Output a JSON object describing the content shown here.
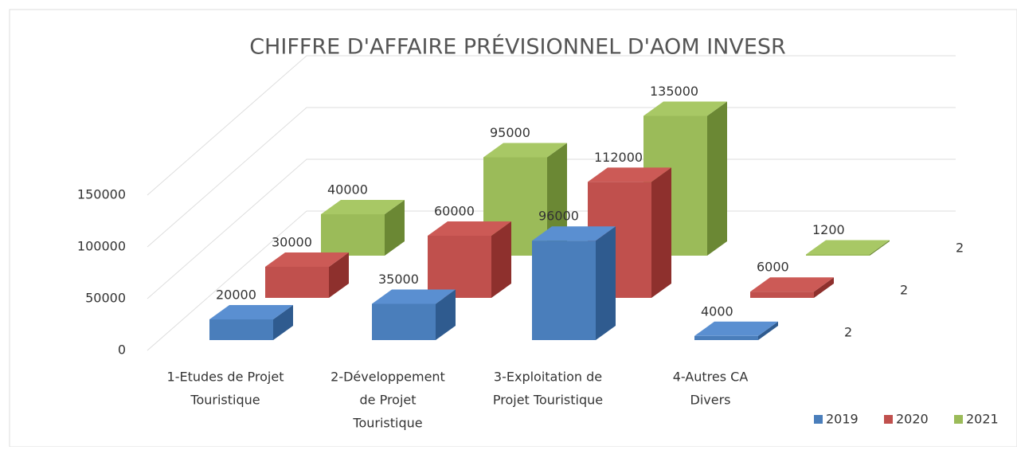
{
  "chart_data": {
    "type": "bar3d",
    "title": "CHIFFRE D'AFFAIRE PRÉVISIONNEL D'AOM INVESR",
    "categories": [
      [
        "1-Etudes de Projet",
        "Touristique"
      ],
      [
        "2-Développement",
        "de Projet",
        "Touristique"
      ],
      [
        "3-Exploitation de",
        "Projet Touristique"
      ],
      [
        "4-Autres CA",
        "Divers"
      ]
    ],
    "series": [
      {
        "name": "2019",
        "color": "#4a7ebb",
        "side": "#2f5b8f",
        "top": "#5a8fd1",
        "values": [
          20000,
          35000,
          96000,
          4000
        ]
      },
      {
        "name": "2020",
        "color": "#c0504d",
        "side": "#8e302d",
        "top": "#cc5a56",
        "values": [
          30000,
          60000,
          112000,
          6000
        ]
      },
      {
        "name": "2021",
        "color": "#9bbb59",
        "side": "#6b8834",
        "top": "#a8c865",
        "values": [
          40000,
          95000,
          135000,
          1200
        ]
      }
    ],
    "depth_labels": [
      "2",
      "2",
      "2"
    ],
    "ylim": [
      0,
      150000
    ],
    "yticks": [
      0,
      50000,
      100000,
      150000
    ],
    "grid": true,
    "legend": "bottom-right"
  }
}
